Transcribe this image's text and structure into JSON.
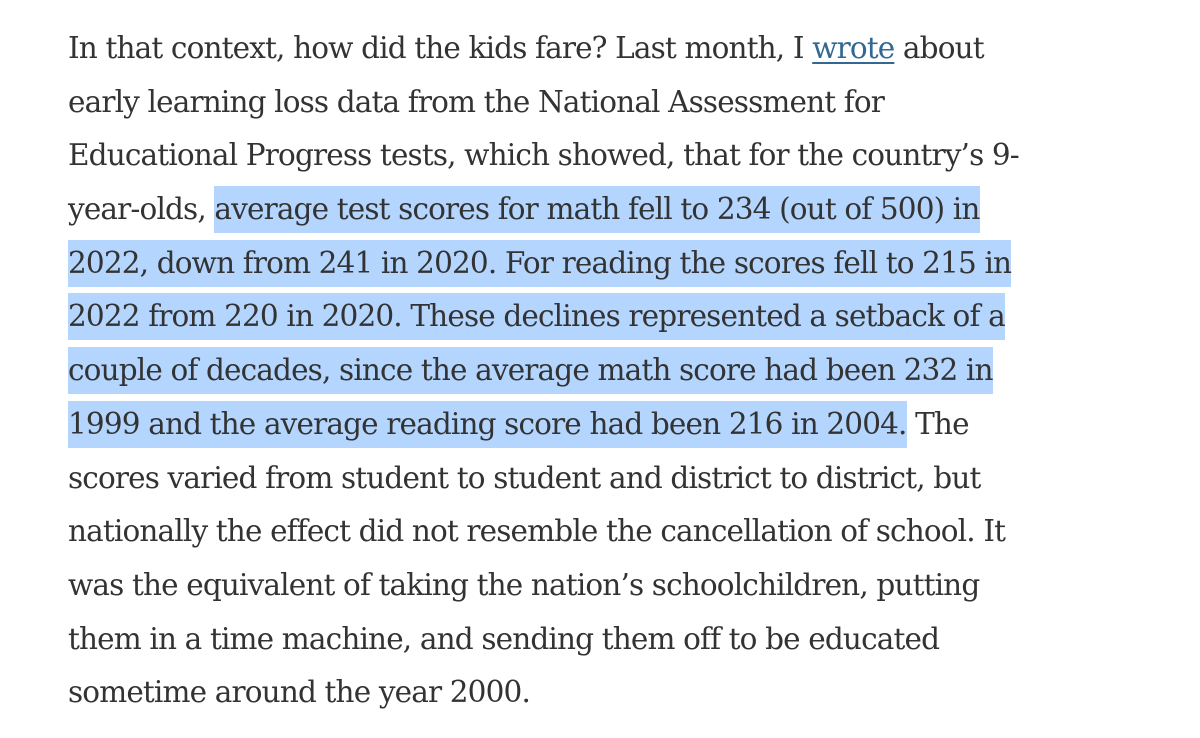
{
  "article": {
    "paragraph": {
      "line1_before_link": "In that context, how did the kids fare? Last month, I ",
      "link_text": "wrote",
      "line1_after_link": " about",
      "line2": "early learning loss data from the National Assessment for",
      "line3": "Educational Progress tests, which showed, that for the country’s 9-",
      "line4_plain": "year-olds, ",
      "line4_selected": "average test scores for math fell to 234 (out of 500) in",
      "line5_selected": "2022, down from 241 in 2020. For reading the scores fell to 215 in",
      "line6_selected": "2022 from 220 in 2020. These declines represented a setback of a",
      "line7_selected": "couple of decades, since the average math score had been 232 in",
      "line8_selected": "1999 and the average reading score had been 216 in 2004.",
      "line8_after": " The",
      "line9": "scores varied from student to student and district to district, but",
      "line10": "nationally the effect did not resemble the cancellation of school. It",
      "line11": "was the equivalent of taking the nation’s schoolchildren, putting",
      "line12": "them in a time machine, and sending them off to be educated",
      "line13": "sometime around the year 2000."
    },
    "colors": {
      "text": "#333333",
      "link": "#326891",
      "selection_highlight": "#b4d5fe",
      "background": "#ffffff"
    }
  }
}
